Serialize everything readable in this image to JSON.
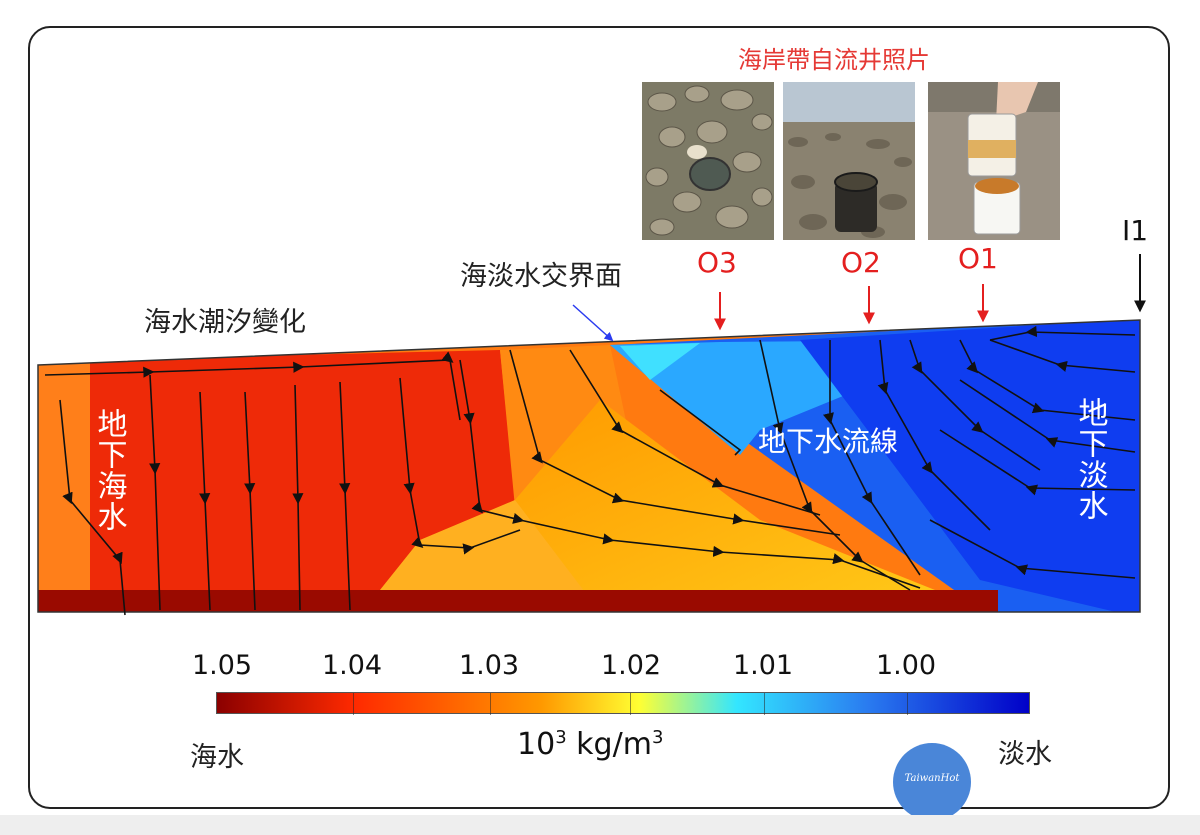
{
  "photos": {
    "title": "海岸帶自流井照片",
    "items": [
      {
        "id": "photo-o3"
      },
      {
        "id": "photo-o2"
      },
      {
        "id": "photo-o1"
      }
    ]
  },
  "wells": [
    {
      "label": "O3"
    },
    {
      "label": "O2"
    },
    {
      "label": "O1"
    },
    {
      "label": "I1"
    }
  ],
  "annotations": {
    "interface": "海淡水交界面",
    "tide": "海水潮汐變化",
    "groundwater_seawater": "地下海水",
    "streamlines": "地下水流線",
    "groundwater_freshwater": "地下淡水"
  },
  "colorbar": {
    "ticks": [
      "1.05",
      "1.04",
      "1.03",
      "1.02",
      "1.01",
      "1.00"
    ],
    "left_end": "海水",
    "right_end": "淡水",
    "unit_base": "10",
    "unit_exp": "3",
    "unit_rest": " kg/m",
    "unit_exp2": "3",
    "colors": [
      "#8b0000",
      "#ff2a00",
      "#ff9900",
      "#ffff33",
      "#33e6ff",
      "#2a7cf0",
      "#0000c8"
    ]
  },
  "logo": {
    "text": "TaiwanHot"
  }
}
